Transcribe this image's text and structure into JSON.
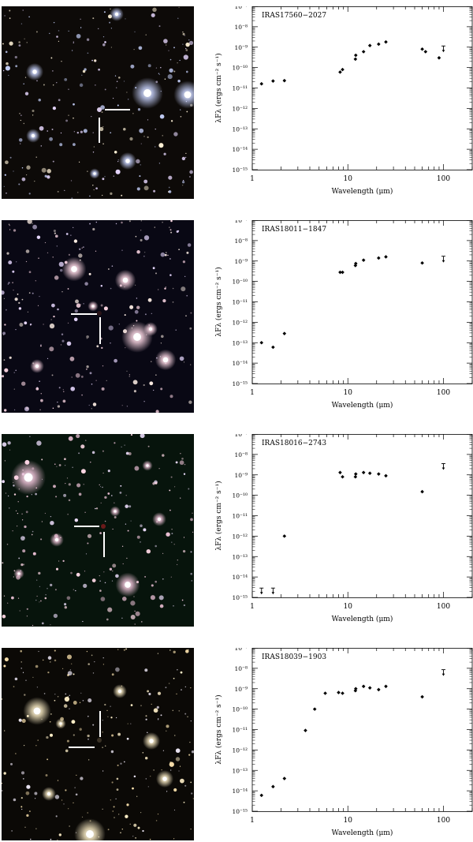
{
  "figure": {
    "colors": {
      "background": "#ffffff",
      "axis": "#000000",
      "marker": "#000000",
      "crosshair": "#ffffff"
    },
    "panels": [
      {
        "image": {
          "sky": "#0d0a08",
          "star_tint": [
            "#c9d4ff",
            "#e8d8ff",
            "#fff2d6"
          ],
          "target_color": "#d7c8e6"
        },
        "chart_data": {
          "type": "scatter",
          "title": "IRAS17560−2027",
          "xlabel": "Wavelength (μm)",
          "ylabel": "λFλ (ergs cm⁻² s⁻¹)",
          "xscale": "log",
          "yscale": "log",
          "xlim": [
            1,
            200
          ],
          "ylim": [
            1e-15,
            1e-07
          ],
          "x_ticks": [
            "1",
            "10",
            "100"
          ],
          "y_ticks": [
            "10⁻¹⁵",
            "10⁻¹⁴",
            "10⁻¹³",
            "10⁻¹²",
            "10⁻¹¹",
            "10⁻¹⁰",
            "10⁻⁹",
            "10⁻⁸",
            "10⁻⁷"
          ],
          "points": [
            [
              1.25,
              1.6e-11
            ],
            [
              1.65,
              2.2e-11
            ],
            [
              2.17,
              2.3e-11
            ],
            [
              8.3,
              6e-11
            ],
            [
              8.8,
              8e-11
            ],
            [
              12,
              2.6e-10
            ],
            [
              12.1,
              4e-10
            ],
            [
              14.6,
              6e-10
            ],
            [
              17,
              1.2e-09
            ],
            [
              21,
              1.4e-09
            ],
            [
              25,
              1.8e-09
            ],
            [
              60,
              8e-10
            ],
            [
              65,
              6e-10
            ],
            [
              90,
              3e-10
            ]
          ],
          "upper_limits": [
            [
              100,
              8e-10
            ]
          ]
        }
      },
      {
        "image": {
          "sky": "#090814",
          "star_tint": [
            "#ffd9e6",
            "#e8d8ff",
            "#fff0e6"
          ],
          "target_color": "#2a1418"
        },
        "chart_data": {
          "type": "scatter",
          "title": "IRAS18011−1847",
          "xlabel": "Wavelength (μm)",
          "ylabel": "λFλ (ergs cm⁻² s⁻¹)",
          "xscale": "log",
          "yscale": "log",
          "xlim": [
            1,
            200
          ],
          "ylim": [
            1e-15,
            1e-07
          ],
          "x_ticks": [
            "1",
            "10",
            "100"
          ],
          "y_ticks": [
            "10⁻¹⁵",
            "10⁻¹⁴",
            "10⁻¹³",
            "10⁻¹²",
            "10⁻¹¹",
            "10⁻¹⁰",
            "10⁻⁹",
            "10⁻⁸",
            "10⁻⁷"
          ],
          "points": [
            [
              1.25,
              1e-13
            ],
            [
              1.65,
              6e-14
            ],
            [
              2.17,
              2.8e-13
            ],
            [
              8.3,
              2.8e-10
            ],
            [
              8.8,
              2.8e-10
            ],
            [
              12,
              6e-10
            ],
            [
              12.1,
              7.5e-10
            ],
            [
              14.6,
              1.1e-09
            ],
            [
              21,
              1.4e-09
            ],
            [
              25,
              1.6e-09
            ],
            [
              60,
              8e-10
            ]
          ],
          "upper_limits": [
            [
              100,
              1.2e-09
            ]
          ]
        }
      },
      {
        "image": {
          "sky": "#07140c",
          "star_tint": [
            "#f3c6dc",
            "#ffd9e6",
            "#f0e0ff"
          ],
          "target_color": "#6a1a1a"
        },
        "chart_data": {
          "type": "scatter",
          "title": "IRAS18016−2743",
          "xlabel": "Wavelength (μm)",
          "ylabel": "λFλ (ergs cm⁻² s⁻¹)",
          "xscale": "log",
          "yscale": "log",
          "xlim": [
            1,
            200
          ],
          "ylim": [
            1e-15,
            1e-07
          ],
          "x_ticks": [
            "1",
            "10",
            "100"
          ],
          "y_ticks": [
            "10⁻¹⁵",
            "10⁻¹⁴",
            "10⁻¹³",
            "10⁻¹²",
            "10⁻¹¹",
            "10⁻¹⁰",
            "10⁻⁹",
            "10⁻⁸",
            "10⁻⁷"
          ],
          "points": [
            [
              2.17,
              1e-12
            ],
            [
              8.3,
              1.3e-09
            ],
            [
              8.8,
              8e-10
            ],
            [
              12,
              8e-10
            ],
            [
              12.1,
              1.1e-09
            ],
            [
              14.6,
              1.3e-09
            ],
            [
              17,
              1.2e-09
            ],
            [
              21,
              1.1e-09
            ],
            [
              25,
              9e-10
            ],
            [
              60,
              1.5e-10
            ]
          ],
          "upper_limits": [
            [
              1.25,
              2e-15
            ],
            [
              1.65,
              2e-15
            ],
            [
              100,
              2.5e-09
            ]
          ]
        }
      },
      {
        "image": {
          "sky": "#0b0906",
          "star_tint": [
            "#fff0c8",
            "#ffe6b0",
            "#f6f0ff"
          ],
          "target_color": "#3a3226"
        },
        "chart_data": {
          "type": "scatter",
          "title": "IRAS18039−1903",
          "xlabel": "Wavelength (μm)",
          "ylabel": "λFλ (ergs cm⁻² s⁻¹)",
          "xscale": "log",
          "yscale": "log",
          "xlim": [
            1,
            200
          ],
          "ylim": [
            1e-15,
            1e-07
          ],
          "x_ticks": [
            "1",
            "10",
            "100"
          ],
          "y_ticks": [
            "10⁻¹⁵",
            "10⁻¹⁴",
            "10⁻¹³",
            "10⁻¹²",
            "10⁻¹¹",
            "10⁻¹⁰",
            "10⁻⁹",
            "10⁻⁸",
            "10⁻⁷"
          ],
          "points": [
            [
              1.25,
              6e-15
            ],
            [
              1.65,
              1.6e-14
            ],
            [
              2.17,
              4e-14
            ],
            [
              3.6,
              9e-12
            ],
            [
              4.5,
              1e-10
            ],
            [
              5.8,
              6e-10
            ],
            [
              8.0,
              6.5e-10
            ],
            [
              8.8,
              6e-10
            ],
            [
              12,
              8e-10
            ],
            [
              12.1,
              1e-09
            ],
            [
              14.6,
              1.3e-09
            ],
            [
              17,
              1.1e-09
            ],
            [
              21,
              9e-10
            ],
            [
              25,
              1.3e-09
            ],
            [
              60,
              4e-10
            ]
          ],
          "upper_limits": [
            [
              100,
              6e-09
            ]
          ]
        }
      }
    ]
  }
}
